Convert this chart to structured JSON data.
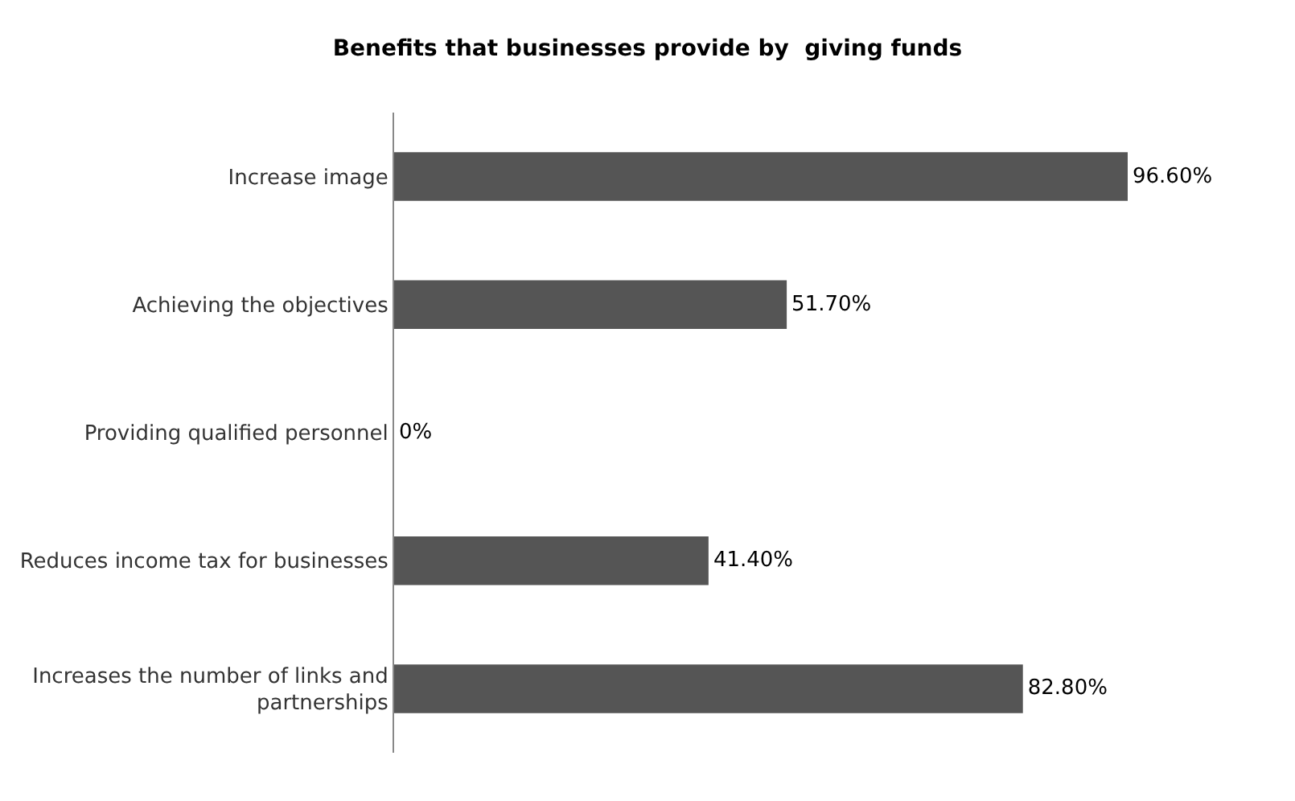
{
  "chart_data": {
    "type": "bar",
    "orientation": "horizontal",
    "title": "Benefits that businesses provide by  giving funds",
    "categories": [
      "Increase image",
      "Achieving the objectives",
      "Providing qualified personnel",
      "Reduces income tax for businesses",
      "Increases the number of links and partnerships"
    ],
    "values": [
      96.6,
      51.7,
      0,
      41.4,
      82.8
    ],
    "value_labels": [
      "96.60%",
      "51.70%",
      "0%",
      "41.40%",
      "82.80%"
    ],
    "color": "#555555",
    "legend": false
  }
}
